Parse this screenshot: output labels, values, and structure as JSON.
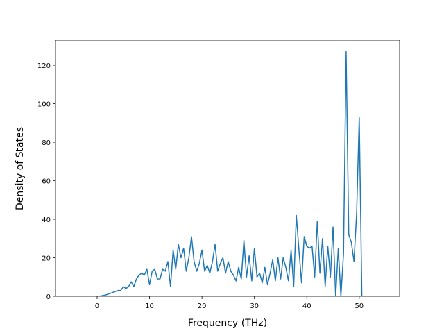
{
  "chart_data": {
    "type": "line",
    "x_label": "Frequency (THz)",
    "y_label": "Density of States",
    "x": [
      -5,
      -4.5,
      -4,
      -3.5,
      -3,
      -2.5,
      -2,
      -1.5,
      -1,
      -0.5,
      0,
      0.5,
      1,
      1.5,
      2,
      2.5,
      3,
      3.5,
      4,
      4.5,
      5,
      5.5,
      6,
      6.5,
      7,
      7.5,
      8,
      8.5,
      9,
      9.5,
      10,
      10.5,
      11,
      11.5,
      12,
      12.5,
      13,
      13.5,
      14,
      14.5,
      15,
      15.5,
      16,
      16.5,
      17,
      17.5,
      18,
      18.5,
      19,
      19.5,
      20,
      20.5,
      21,
      21.5,
      22,
      22.5,
      23,
      23.5,
      24,
      24.5,
      25,
      25.5,
      26,
      26.5,
      27,
      27.5,
      28,
      28.5,
      29,
      29.5,
      30,
      30.5,
      31,
      31.5,
      32,
      32.5,
      33,
      33.5,
      34,
      34.5,
      35,
      35.5,
      36,
      36.5,
      37,
      37.5,
      38,
      38.5,
      39,
      39.5,
      40,
      40.5,
      41,
      41.5,
      42,
      42.5,
      43,
      43.5,
      44,
      44.5,
      45,
      45.5,
      46,
      46.5,
      47,
      47.5,
      48,
      48.5,
      49,
      49.5,
      50,
      50.5,
      51,
      51.5,
      52,
      52.5,
      53,
      53.5,
      54,
      54.5
    ],
    "series": [
      {
        "color": "#1f77b4",
        "values": [
          0,
          0,
          0,
          0,
          0,
          0,
          0,
          0,
          0,
          0,
          0,
          0.1,
          0.3,
          0.6,
          1,
          1.5,
          2,
          2.5,
          3,
          3,
          5,
          4,
          5,
          7.5,
          5,
          9,
          11,
          12,
          11,
          14,
          6,
          13,
          14,
          9,
          9,
          14,
          13,
          18,
          5,
          24,
          14,
          27,
          20,
          25,
          13,
          20,
          31,
          18,
          13,
          17,
          24,
          13,
          16,
          12,
          18,
          27,
          13,
          17,
          20,
          12,
          18,
          13,
          11,
          8,
          15,
          9,
          29,
          10,
          21,
          8,
          25,
          10,
          12,
          7,
          15,
          6,
          12,
          19,
          8,
          20,
          9,
          20,
          15,
          8,
          24,
          5,
          42,
          24,
          7,
          31,
          26,
          25,
          26,
          10,
          39,
          12,
          30,
          5,
          26,
          10,
          36,
          0,
          25,
          0,
          22,
          127,
          32,
          28,
          18,
          43,
          93,
          0,
          0,
          0,
          0,
          0,
          0,
          0,
          0,
          0
        ]
      }
    ],
    "xlim": [
      -7.94,
      57.7
    ],
    "ylim": [
      0,
      133
    ],
    "xticks": [
      0,
      10,
      20,
      30,
      40,
      50
    ],
    "yticks": [
      0,
      20,
      40,
      60,
      80,
      100,
      120
    ]
  }
}
